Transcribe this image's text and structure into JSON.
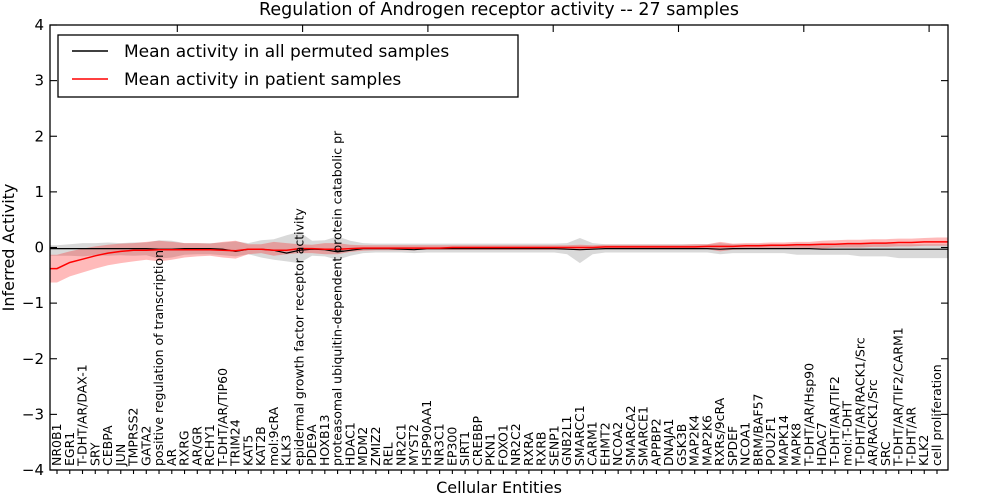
{
  "chart_data": {
    "type": "line",
    "title": "Regulation of Androgen receptor activity -- 27 samples",
    "xlabel": "Cellular Entities",
    "ylabel": "Inferred Activity",
    "ylim": [
      -4,
      4
    ],
    "yticks": [
      -4,
      -3,
      -2,
      -1,
      0,
      1,
      2,
      3,
      4
    ],
    "grid": false,
    "legend_position": "upper left",
    "categories": [
      "NR0B1",
      "EGR1",
      "T-DHT/AR/DAX-1",
      "SRY",
      "CEBPA",
      "JUN",
      "TMPRSS2",
      "GATA2",
      "positive regulation of transcription",
      "AR",
      "RXRG",
      "AR/GR",
      "RCHY1",
      "T-DHT/AR/TIP60",
      "TRIM24",
      "KAT5",
      "KAT2B",
      "mol:9cRA",
      "KLK3",
      "epidermal growth factor receptor activity",
      "PDE9A",
      "HOXB13",
      "proteasomal ubiquitin-dependent protein catabolic pr",
      "HDAC1",
      "MDM2",
      "ZMIZ2",
      "REL",
      "NR2C1",
      "MYST2",
      "HSP90AA1",
      "NR3C1",
      "EP300",
      "SIRT1",
      "CREBBP",
      "PKN1",
      "FOXO1",
      "NR2C2",
      "RXRA",
      "RXRB",
      "SENP1",
      "GNB2L1",
      "SMARCC1",
      "CARM1",
      "EHMT2",
      "NCOA2",
      "SMARCA2",
      "SMARCE1",
      "APPBP2",
      "DNAJA1",
      "GSK3B",
      "MAP2K4",
      "MAP2K6",
      "RXRs/9cRA",
      "SPDEF",
      "NCOA1",
      "BRM/BAF57",
      "POU2F1",
      "MAPK14",
      "MAPK8",
      "T-DHT/AR/Hsp90",
      "HDAC7",
      "T-DHT/AR/TIF2",
      "mol:T-DHT",
      "T-DHT/AR/RACK1/Src",
      "AR/RACK1/Src",
      "SRC",
      "T-DHT/AR/TIF2/CARM1",
      "T-DHT/AR",
      "KLK2",
      "cell proliferation"
    ],
    "series": [
      {
        "name": "Mean activity in all permuted samples",
        "color": "#000000",
        "band_color": "#000000",
        "band_opacity": 0.15,
        "values": [
          -0.02,
          -0.02,
          -0.02,
          -0.02,
          -0.02,
          -0.02,
          -0.02,
          -0.02,
          -0.03,
          -0.03,
          -0.02,
          -0.02,
          -0.02,
          -0.03,
          -0.07,
          -0.03,
          -0.03,
          -0.05,
          -0.1,
          -0.05,
          -0.03,
          -0.04,
          -0.08,
          -0.05,
          -0.02,
          -0.02,
          -0.02,
          -0.03,
          -0.04,
          -0.02,
          -0.02,
          -0.02,
          -0.02,
          -0.02,
          -0.02,
          -0.02,
          -0.02,
          -0.02,
          -0.02,
          -0.02,
          -0.03,
          -0.04,
          -0.03,
          -0.02,
          -0.02,
          -0.02,
          -0.02,
          -0.02,
          -0.02,
          -0.02,
          -0.02,
          -0.02,
          -0.03,
          -0.02,
          -0.02,
          -0.02,
          -0.02,
          -0.02,
          -0.02,
          -0.02,
          -0.03,
          -0.03,
          -0.03,
          -0.03,
          -0.03,
          -0.03,
          -0.03,
          -0.03,
          -0.03,
          -0.03
        ],
        "band_low": [
          -0.15,
          -0.15,
          -0.16,
          -0.14,
          -0.15,
          -0.14,
          -0.15,
          -0.14,
          -0.2,
          -0.18,
          -0.13,
          -0.12,
          -0.12,
          -0.14,
          -0.16,
          -0.12,
          -0.18,
          -0.22,
          -0.25,
          -0.28,
          -0.15,
          -0.16,
          -0.22,
          -0.15,
          -0.1,
          -0.09,
          -0.09,
          -0.09,
          -0.1,
          -0.09,
          -0.09,
          -0.09,
          -0.09,
          -0.09,
          -0.09,
          -0.09,
          -0.09,
          -0.09,
          -0.09,
          -0.09,
          -0.12,
          -0.28,
          -0.12,
          -0.09,
          -0.09,
          -0.09,
          -0.09,
          -0.09,
          -0.09,
          -0.09,
          -0.09,
          -0.09,
          -0.12,
          -0.1,
          -0.1,
          -0.1,
          -0.1,
          -0.1,
          -0.13,
          -0.13,
          -0.13,
          -0.13,
          -0.13,
          -0.16,
          -0.16,
          -0.16,
          -0.19,
          -0.19,
          -0.19,
          -0.19
        ],
        "band_high": [
          0.04,
          0.06,
          0.08,
          0.08,
          0.09,
          0.08,
          0.09,
          0.09,
          0.13,
          0.12,
          0.08,
          0.08,
          0.08,
          0.09,
          0.11,
          0.08,
          0.13,
          0.15,
          0.22,
          0.28,
          0.12,
          0.13,
          0.2,
          0.12,
          0.08,
          0.07,
          0.07,
          0.07,
          0.07,
          0.07,
          0.07,
          0.07,
          0.07,
          0.07,
          0.07,
          0.07,
          0.07,
          0.07,
          0.07,
          0.07,
          0.08,
          0.17,
          0.08,
          0.06,
          0.06,
          0.06,
          0.06,
          0.06,
          0.06,
          0.06,
          0.06,
          0.06,
          0.08,
          0.06,
          0.06,
          0.06,
          0.06,
          0.06,
          0.07,
          0.07,
          0.07,
          0.07,
          0.07,
          0.07,
          0.07,
          0.07,
          0.06,
          0.06,
          0.06,
          0.06
        ]
      },
      {
        "name": "Mean activity in patient samples",
        "color": "#ff0000",
        "band_color": "#ff0000",
        "band_opacity": 0.27,
        "values": [
          -0.38,
          -0.27,
          -0.21,
          -0.15,
          -0.1,
          -0.07,
          -0.05,
          -0.05,
          -0.04,
          -0.04,
          -0.04,
          -0.04,
          -0.04,
          -0.05,
          -0.06,
          -0.03,
          -0.03,
          -0.05,
          -0.05,
          -0.02,
          -0.02,
          -0.03,
          -0.03,
          -0.02,
          -0.01,
          -0.01,
          -0.01,
          -0.01,
          -0.01,
          -0.01,
          -0.01,
          0.0,
          0.0,
          0.0,
          0.0,
          0.0,
          0.0,
          0.0,
          0.0,
          0.0,
          0.0,
          0.0,
          0.0,
          0.01,
          0.01,
          0.01,
          0.01,
          0.01,
          0.01,
          0.01,
          0.01,
          0.02,
          0.02,
          0.02,
          0.03,
          0.03,
          0.04,
          0.04,
          0.05,
          0.05,
          0.06,
          0.06,
          0.07,
          0.07,
          0.08,
          0.08,
          0.09,
          0.09,
          0.1,
          0.1
        ],
        "band_low": [
          -0.63,
          -0.52,
          -0.45,
          -0.38,
          -0.32,
          -0.28,
          -0.25,
          -0.22,
          -0.25,
          -0.22,
          -0.18,
          -0.16,
          -0.15,
          -0.18,
          -0.2,
          -0.12,
          -0.1,
          -0.15,
          -0.12,
          -0.1,
          -0.1,
          -0.12,
          -0.12,
          -0.08,
          -0.06,
          -0.05,
          -0.05,
          -0.05,
          -0.05,
          -0.04,
          -0.04,
          -0.04,
          -0.04,
          -0.04,
          -0.04,
          -0.04,
          -0.04,
          -0.04,
          -0.04,
          -0.04,
          -0.04,
          -0.05,
          -0.04,
          -0.03,
          -0.03,
          -0.03,
          -0.03,
          -0.03,
          -0.03,
          -0.03,
          -0.03,
          -0.03,
          -0.07,
          -0.04,
          -0.03,
          -0.02,
          -0.02,
          -0.02,
          -0.01,
          -0.01,
          -0.02,
          0.0,
          0.0,
          0.0,
          0.01,
          0.01,
          0.02,
          0.02,
          0.03,
          0.03
        ],
        "band_high": [
          -0.13,
          -0.07,
          -0.02,
          0.02,
          0.05,
          0.07,
          0.08,
          0.1,
          0.12,
          0.1,
          0.08,
          0.08,
          0.07,
          0.1,
          0.12,
          0.06,
          0.06,
          0.1,
          0.08,
          0.06,
          0.05,
          0.08,
          0.08,
          0.05,
          0.04,
          0.04,
          0.04,
          0.04,
          0.04,
          0.04,
          0.04,
          0.04,
          0.04,
          0.04,
          0.04,
          0.04,
          0.04,
          0.04,
          0.04,
          0.04,
          0.04,
          0.05,
          0.04,
          0.05,
          0.05,
          0.05,
          0.05,
          0.05,
          0.05,
          0.05,
          0.06,
          0.06,
          0.1,
          0.07,
          0.08,
          0.08,
          0.09,
          0.09,
          0.1,
          0.1,
          0.12,
          0.13,
          0.14,
          0.14,
          0.15,
          0.15,
          0.16,
          0.16,
          0.17,
          0.18
        ]
      }
    ]
  }
}
